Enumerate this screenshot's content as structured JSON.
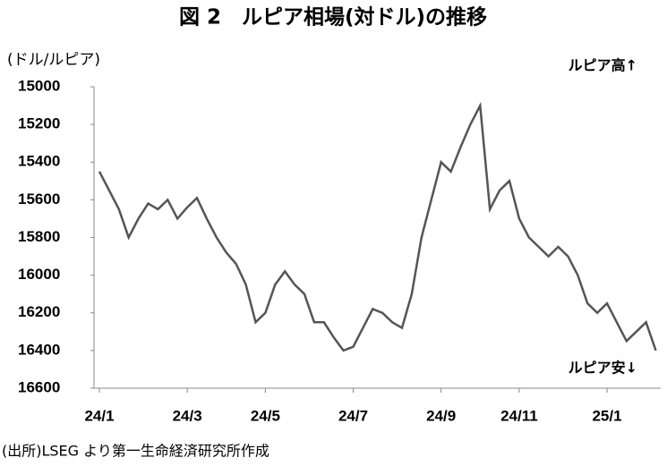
{
  "chart_data": {
    "type": "line",
    "title": "図 2　ルピア相場(対ドル)の推移",
    "y_label": "(ドル/ルピア)",
    "annotations": [
      "ルピア高↑",
      "ルピア安↓"
    ],
    "source": "(出所)LSEG より第一生命経済研究所作成",
    "categories": [
      "24/1",
      null,
      null,
      null,
      null,
      null,
      null,
      null,
      null,
      "24/3",
      null,
      null,
      null,
      null,
      null,
      null,
      null,
      "24/5",
      null,
      null,
      null,
      null,
      null,
      null,
      null,
      null,
      "24/7",
      null,
      null,
      null,
      null,
      null,
      null,
      null,
      null,
      "24/9",
      null,
      null,
      null,
      null,
      null,
      null,
      null,
      "24/11",
      null,
      null,
      null,
      null,
      null,
      null,
      null,
      null,
      "25/1",
      null,
      null,
      null,
      null,
      null
    ],
    "values": [
      15450,
      15550,
      15650,
      15800,
      15700,
      15620,
      15650,
      15600,
      15700,
      15640,
      15590,
      15700,
      15800,
      15880,
      15940,
      16050,
      16250,
      16200,
      16050,
      15980,
      16050,
      16100,
      16250,
      16250,
      16330,
      16400,
      16380,
      16280,
      16180,
      16200,
      16250,
      16280,
      16100,
      15800,
      15600,
      15400,
      15450,
      15320,
      15200,
      15100,
      15650,
      15550,
      15500,
      15700,
      15800,
      15850,
      15900,
      15850,
      15900,
      16000,
      16150,
      16200,
      16150,
      16250,
      16350,
      16300,
      16250,
      16400
    ],
    "color": "#555555",
    "ylim": [
      16600,
      15000
    ],
    "yticks": [
      15000,
      15200,
      15400,
      15600,
      15800,
      16000,
      16200,
      16400,
      16600
    ],
    "title_color": "#1f3fc8",
    "grid": false
  }
}
